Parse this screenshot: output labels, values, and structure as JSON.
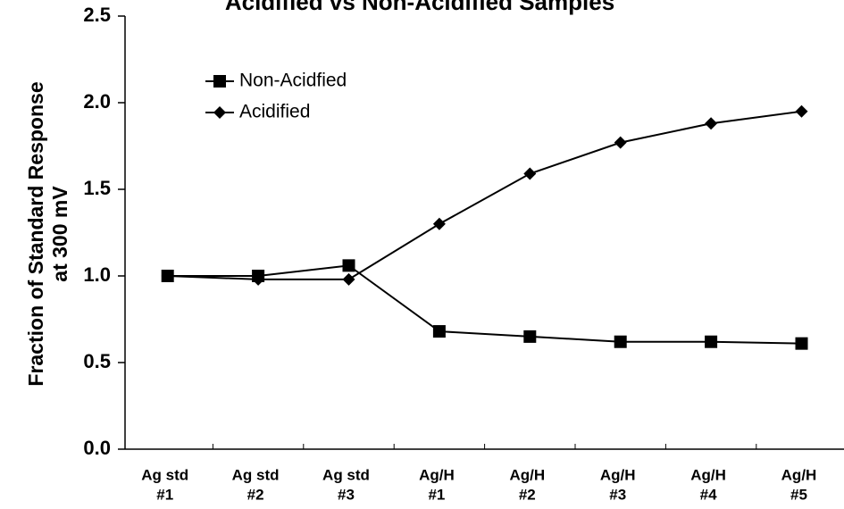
{
  "chart_data": {
    "type": "line",
    "title": "Acidified vs Non-Acidified Samples",
    "ylabel": [
      "Fraction of Standard Response",
      "at 300 mV"
    ],
    "categories": [
      [
        "Ag std",
        "#1"
      ],
      [
        "Ag std",
        "#2"
      ],
      [
        "Ag std",
        "#3"
      ],
      [
        "Ag/H",
        "#1"
      ],
      [
        "Ag/H",
        "#2"
      ],
      [
        "Ag/H",
        "#3"
      ],
      [
        "Ag/H",
        "#4"
      ],
      [
        "Ag/H",
        "#5"
      ]
    ],
    "series": [
      {
        "name": "Non-Acidfied",
        "color": "#000000",
        "marker": "square",
        "values": [
          1.0,
          1.0,
          1.06,
          0.68,
          0.65,
          0.62,
          0.62,
          0.61
        ]
      },
      {
        "name": "Acidified",
        "color": "#000000",
        "marker": "diamond",
        "values": [
          1.0,
          0.98,
          0.98,
          1.3,
          1.59,
          1.77,
          1.88,
          1.95
        ]
      }
    ],
    "ylim": [
      0,
      2.5
    ],
    "yticks": [
      {
        "value": 0,
        "label": "0.0"
      },
      {
        "value": 0.5,
        "label": "0.5"
      },
      {
        "value": 1,
        "label": "1.0"
      },
      {
        "value": 1.5,
        "label": "1.5"
      },
      {
        "value": 2,
        "label": "2.0"
      },
      {
        "value": 2.5,
        "label": "2.5"
      }
    ],
    "legend": "upper left"
  }
}
